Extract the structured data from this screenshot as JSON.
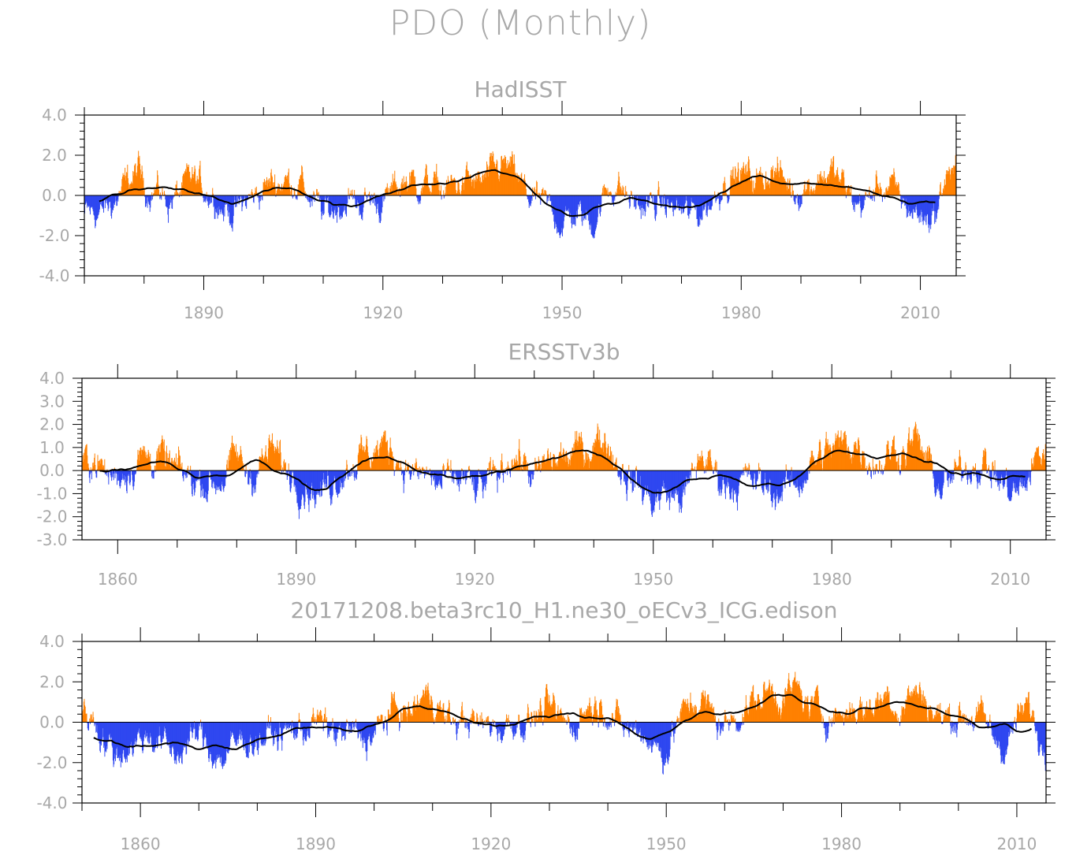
{
  "title": "PDO (Monthly)",
  "colors": {
    "positive": "#ff8000",
    "negative": "#2e47f0",
    "smooth": "#000000",
    "text": "#a8a8a8"
  },
  "chart_data": [
    {
      "type": "bar",
      "title": "HadISST",
      "x_range": [
        1870,
        2016
      ],
      "ylim": [
        -4,
        4
      ],
      "yticks": [
        "4.0",
        "2.0",
        "0.0",
        "-2.0",
        "-4.0"
      ],
      "ytick_values": [
        4,
        2,
        0,
        -2,
        -4
      ],
      "xticks": [
        "1890",
        "1920",
        "1950",
        "1980",
        "2010"
      ],
      "xtick_values": [
        1890,
        1920,
        1950,
        1980,
        2010
      ],
      "smooth_range": [
        1872.5,
        2012.5
      ],
      "anchors": [
        [
          1870,
          -0.9
        ],
        [
          1873,
          -0.8
        ],
        [
          1875,
          -0.3
        ],
        [
          1877,
          0.5
        ],
        [
          1879,
          1.2
        ],
        [
          1880,
          0.4
        ],
        [
          1882,
          0.3
        ],
        [
          1884,
          -0.3
        ],
        [
          1886,
          0.1
        ],
        [
          1888,
          0.8
        ],
        [
          1890,
          0.3
        ],
        [
          1892,
          0.0
        ],
        [
          1893,
          -0.6
        ],
        [
          1895,
          -0.8
        ],
        [
          1897,
          -0.3
        ],
        [
          1899,
          0.1
        ],
        [
          1901,
          0.6
        ],
        [
          1903,
          0.7
        ],
        [
          1906,
          0.7
        ],
        [
          1908,
          -0.2
        ],
        [
          1910,
          -0.9
        ],
        [
          1912,
          -0.6
        ],
        [
          1914,
          -0.2
        ],
        [
          1916,
          -0.4
        ],
        [
          1918,
          -0.2
        ],
        [
          1920,
          -0.4
        ],
        [
          1922,
          0.4
        ],
        [
          1924,
          0.8
        ],
        [
          1926,
          0.5
        ],
        [
          1928,
          0.6
        ],
        [
          1930,
          0.2
        ],
        [
          1932,
          0.5
        ],
        [
          1934,
          0.7
        ],
        [
          1936,
          0.5
        ],
        [
          1938,
          0.9
        ],
        [
          1940,
          1.5
        ],
        [
          1942,
          1.0
        ],
        [
          1944,
          0.0
        ],
        [
          1946,
          -0.3
        ],
        [
          1948,
          -0.7
        ],
        [
          1950,
          -1.3
        ],
        [
          1952,
          -0.9
        ],
        [
          1954,
          -1.1
        ],
        [
          1955,
          -1.4
        ],
        [
          1957,
          0.0
        ],
        [
          1959,
          0.6
        ],
        [
          1961,
          -0.1
        ],
        [
          1963,
          -0.6
        ],
        [
          1965,
          -0.4
        ],
        [
          1967,
          -0.5
        ],
        [
          1969,
          -0.6
        ],
        [
          1971,
          -0.9
        ],
        [
          1973,
          -0.8
        ],
        [
          1975,
          -0.3
        ],
        [
          1977,
          0.7
        ],
        [
          1979,
          1.0
        ],
        [
          1981,
          1.0
        ],
        [
          1983,
          0.7
        ],
        [
          1985,
          1.3
        ],
        [
          1987,
          0.8
        ],
        [
          1989,
          0.2
        ],
        [
          1991,
          0.5
        ],
        [
          1993,
          0.9
        ],
        [
          1995,
          1.2
        ],
        [
          1997,
          0.5
        ],
        [
          1999,
          -0.4
        ],
        [
          2001,
          -0.3
        ],
        [
          2003,
          0.5
        ],
        [
          2005,
          0.4
        ],
        [
          2007,
          -0.3
        ],
        [
          2009,
          -0.8
        ],
        [
          2011,
          -1.1
        ],
        [
          2013,
          -0.6
        ],
        [
          2014,
          0.9
        ],
        [
          2016,
          1.5
        ]
      ]
    },
    {
      "type": "bar",
      "title": "ERSSTv3b",
      "x_range": [
        1854,
        2016
      ],
      "ylim": [
        -3,
        4
      ],
      "yticks": [
        "4.0",
        "3.0",
        "2.0",
        "1.0",
        "0.0",
        "-1.0",
        "-2.0",
        "-3.0"
      ],
      "ytick_values": [
        4,
        3,
        2,
        1,
        0,
        -1,
        -2,
        -3
      ],
      "xticks": [
        "1860",
        "1890",
        "1920",
        "1950",
        "1980",
        "2010"
      ],
      "xtick_values": [
        1860,
        1890,
        1920,
        1950,
        1980,
        2010
      ],
      "smooth_range": [
        1857,
        2012.5
      ],
      "anchors": [
        [
          1854,
          0.3
        ],
        [
          1856,
          0.6
        ],
        [
          1858,
          -0.2
        ],
        [
          1860,
          -0.2
        ],
        [
          1862,
          0.2
        ],
        [
          1864,
          0.6
        ],
        [
          1866,
          0.6
        ],
        [
          1868,
          0.4
        ],
        [
          1870,
          -0.1
        ],
        [
          1872,
          -0.3
        ],
        [
          1874,
          -0.4
        ],
        [
          1876,
          -0.5
        ],
        [
          1878,
          -0.2
        ],
        [
          1880,
          0.6
        ],
        [
          1882,
          -0.2
        ],
        [
          1884,
          0.3
        ],
        [
          1886,
          0.9
        ],
        [
          1888,
          0.1
        ],
        [
          1890,
          -0.2
        ],
        [
          1892,
          -0.6
        ],
        [
          1894,
          -1.0
        ],
        [
          1896,
          -0.4
        ],
        [
          1898,
          0.1
        ],
        [
          1900,
          0.5
        ],
        [
          1902,
          0.7
        ],
        [
          1904,
          1.0
        ],
        [
          1906,
          1.0
        ],
        [
          1908,
          0.2
        ],
        [
          1910,
          -0.2
        ],
        [
          1912,
          -0.2
        ],
        [
          1914,
          -0.7
        ],
        [
          1916,
          -0.5
        ],
        [
          1918,
          -0.3
        ],
        [
          1920,
          -0.9
        ],
        [
          1922,
          -0.6
        ],
        [
          1924,
          -0.2
        ],
        [
          1926,
          0.8
        ],
        [
          1928,
          0.4
        ],
        [
          1930,
          -0.4
        ],
        [
          1932,
          0.3
        ],
        [
          1934,
          0.5
        ],
        [
          1936,
          0.6
        ],
        [
          1938,
          0.9
        ],
        [
          1940,
          1.2
        ],
        [
          1942,
          1.4
        ],
        [
          1944,
          0.3
        ],
        [
          1946,
          -0.3
        ],
        [
          1948,
          -0.8
        ],
        [
          1950,
          -1.3
        ],
        [
          1952,
          -0.9
        ],
        [
          1954,
          -1.2
        ],
        [
          1956,
          -0.7
        ],
        [
          1958,
          0.7
        ],
        [
          1960,
          0.0
        ],
        [
          1962,
          -0.5
        ],
        [
          1964,
          -0.5
        ],
        [
          1966,
          -0.4
        ],
        [
          1968,
          -0.6
        ],
        [
          1970,
          -0.9
        ],
        [
          1972,
          -0.8
        ],
        [
          1974,
          -0.5
        ],
        [
          1976,
          0.1
        ],
        [
          1978,
          0.6
        ],
        [
          1980,
          0.9
        ],
        [
          1982,
          1.1
        ],
        [
          1984,
          1.2
        ],
        [
          1986,
          0.6
        ],
        [
          1988,
          0.3
        ],
        [
          1990,
          0.9
        ],
        [
          1992,
          0.9
        ],
        [
          1994,
          1.3
        ],
        [
          1996,
          0.4
        ],
        [
          1998,
          -0.7
        ],
        [
          2000,
          -0.5
        ],
        [
          2002,
          0.1
        ],
        [
          2004,
          0.4
        ],
        [
          2006,
          0.2
        ],
        [
          2008,
          -0.4
        ],
        [
          2010,
          -0.9
        ],
        [
          2012,
          -0.9
        ],
        [
          2014,
          0.4
        ],
        [
          2016,
          1.0
        ]
      ]
    },
    {
      "type": "bar",
      "title": "20171208.beta3rc10_H1.ne30_oECv3_ICG.edison",
      "x_range": [
        1850,
        2015
      ],
      "ylim": [
        -4,
        4
      ],
      "yticks": [
        "4.0",
        "2.0",
        "0.0",
        "-2.0",
        "-4.0"
      ],
      "ytick_values": [
        4,
        2,
        0,
        -2,
        -4
      ],
      "xticks": [
        "1860",
        "1890",
        "1920",
        "1950",
        "1980",
        "2010"
      ],
      "xtick_values": [
        1860,
        1890,
        1920,
        1950,
        1980,
        2010
      ],
      "smooth_range": [
        1852,
        2012.5
      ],
      "anchors": [
        [
          1850,
          0.5
        ],
        [
          1852,
          0.2
        ],
        [
          1854,
          -1.0
        ],
        [
          1856,
          -1.6
        ],
        [
          1858,
          -1.1
        ],
        [
          1860,
          -0.8
        ],
        [
          1862,
          -0.6
        ],
        [
          1864,
          -1.1
        ],
        [
          1866,
          -1.5
        ],
        [
          1868,
          -1.0
        ],
        [
          1870,
          -0.6
        ],
        [
          1872,
          -1.3
        ],
        [
          1874,
          -1.8
        ],
        [
          1876,
          -1.1
        ],
        [
          1878,
          -0.8
        ],
        [
          1880,
          -0.9
        ],
        [
          1882,
          -0.6
        ],
        [
          1884,
          -0.6
        ],
        [
          1886,
          -0.4
        ],
        [
          1888,
          -0.3
        ],
        [
          1890,
          0.1
        ],
        [
          1892,
          -0.3
        ],
        [
          1894,
          -0.6
        ],
        [
          1896,
          -0.5
        ],
        [
          1898,
          -0.8
        ],
        [
          1900,
          -0.6
        ],
        [
          1902,
          0.2
        ],
        [
          1904,
          0.7
        ],
        [
          1906,
          0.3
        ],
        [
          1908,
          1.2
        ],
        [
          1910,
          1.3
        ],
        [
          1912,
          0.2
        ],
        [
          1914,
          0.0
        ],
        [
          1916,
          0.2
        ],
        [
          1918,
          -0.2
        ],
        [
          1920,
          0.0
        ],
        [
          1922,
          -0.3
        ],
        [
          1924,
          0.1
        ],
        [
          1926,
          0.0
        ],
        [
          1928,
          0.4
        ],
        [
          1930,
          0.6
        ],
        [
          1932,
          0.1
        ],
        [
          1934,
          -0.2
        ],
        [
          1936,
          0.7
        ],
        [
          1938,
          0.9
        ],
        [
          1940,
          0.7
        ],
        [
          1942,
          -0.2
        ],
        [
          1944,
          -0.4
        ],
        [
          1946,
          -0.4
        ],
        [
          1948,
          -1.2
        ],
        [
          1950,
          -1.4
        ],
        [
          1952,
          0.1
        ],
        [
          1954,
          0.8
        ],
        [
          1956,
          1.1
        ],
        [
          1958,
          0.3
        ],
        [
          1960,
          -0.2
        ],
        [
          1962,
          0.3
        ],
        [
          1964,
          0.8
        ],
        [
          1966,
          1.1
        ],
        [
          1968,
          1.6
        ],
        [
          1970,
          1.2
        ],
        [
          1972,
          1.6
        ],
        [
          1974,
          0.9
        ],
        [
          1976,
          0.6
        ],
        [
          1978,
          0.3
        ],
        [
          1980,
          0.4
        ],
        [
          1982,
          0.8
        ],
        [
          1984,
          0.6
        ],
        [
          1986,
          1.0
        ],
        [
          1988,
          1.4
        ],
        [
          1990,
          0.5
        ],
        [
          1992,
          1.5
        ],
        [
          1994,
          1.3
        ],
        [
          1996,
          0.3
        ],
        [
          1998,
          0.2
        ],
        [
          2000,
          0.3
        ],
        [
          2002,
          0.4
        ],
        [
          2004,
          0.2
        ],
        [
          2006,
          -0.7
        ],
        [
          2008,
          -1.2
        ],
        [
          2010,
          0.1
        ],
        [
          2012,
          0.8
        ],
        [
          2014,
          -1.0
        ]
      ]
    }
  ]
}
